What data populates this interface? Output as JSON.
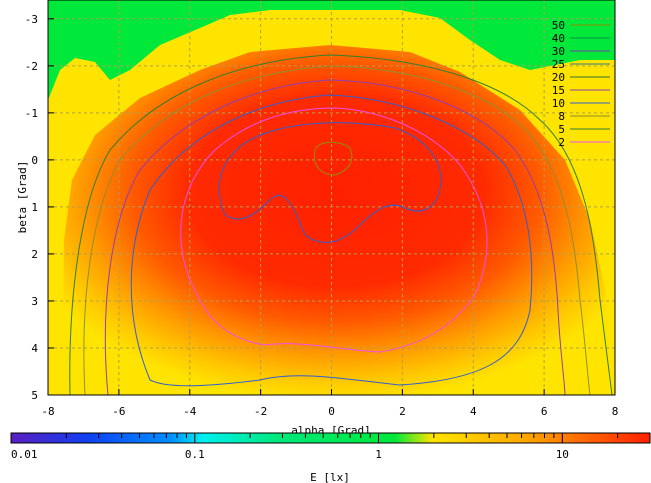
{
  "chart_data": {
    "type": "heatmap",
    "title": "",
    "xlabel": "alpha [Grad]",
    "ylabel": "beta [Grad]",
    "xlim": [
      -8,
      8
    ],
    "ylim": [
      -3.4,
      5
    ],
    "y_inverted": true,
    "x_ticks": [
      "-8",
      "-6",
      "-4",
      "-2",
      "0",
      "2",
      "4",
      "6",
      "8"
    ],
    "y_ticks": [
      "-3",
      "-2",
      "-1",
      "0",
      "1",
      "2",
      "3",
      "4",
      "5"
    ],
    "grid": true,
    "legend_position": "top-right",
    "contour_levels": [
      {
        "label": "50",
        "color": "#8f8f00"
      },
      {
        "label": "40",
        "color": "#0f8a4f"
      },
      {
        "label": "30",
        "color": "#7a3fa0"
      },
      {
        "label": "25",
        "color": "#2f7d7d"
      },
      {
        "label": "20",
        "color": "#2f6f2f"
      },
      {
        "label": "15",
        "color": "#8f3faf"
      },
      {
        "label": "10",
        "color": "#2f5fcf"
      },
      {
        "label": "8",
        "color": "#8f8f30"
      },
      {
        "label": "5",
        "color": "#2f7f2f"
      },
      {
        "label": "2",
        "color": "#ef4fef"
      }
    ],
    "colorbar": {
      "label": "E [lx]",
      "scale": "log",
      "range": [
        0.01,
        30
      ],
      "ticks": [
        "0.01",
        "0.1",
        "1",
        "10"
      ]
    },
    "regions": [
      {
        "value": "< 2",
        "color": "#00e83a"
      },
      {
        "value": "2 - 5",
        "color": "#ffe400"
      },
      {
        "value": "5 - 20",
        "color": "#ff9a00"
      },
      {
        "value": "> 20",
        "color": "#ff2000"
      }
    ]
  }
}
